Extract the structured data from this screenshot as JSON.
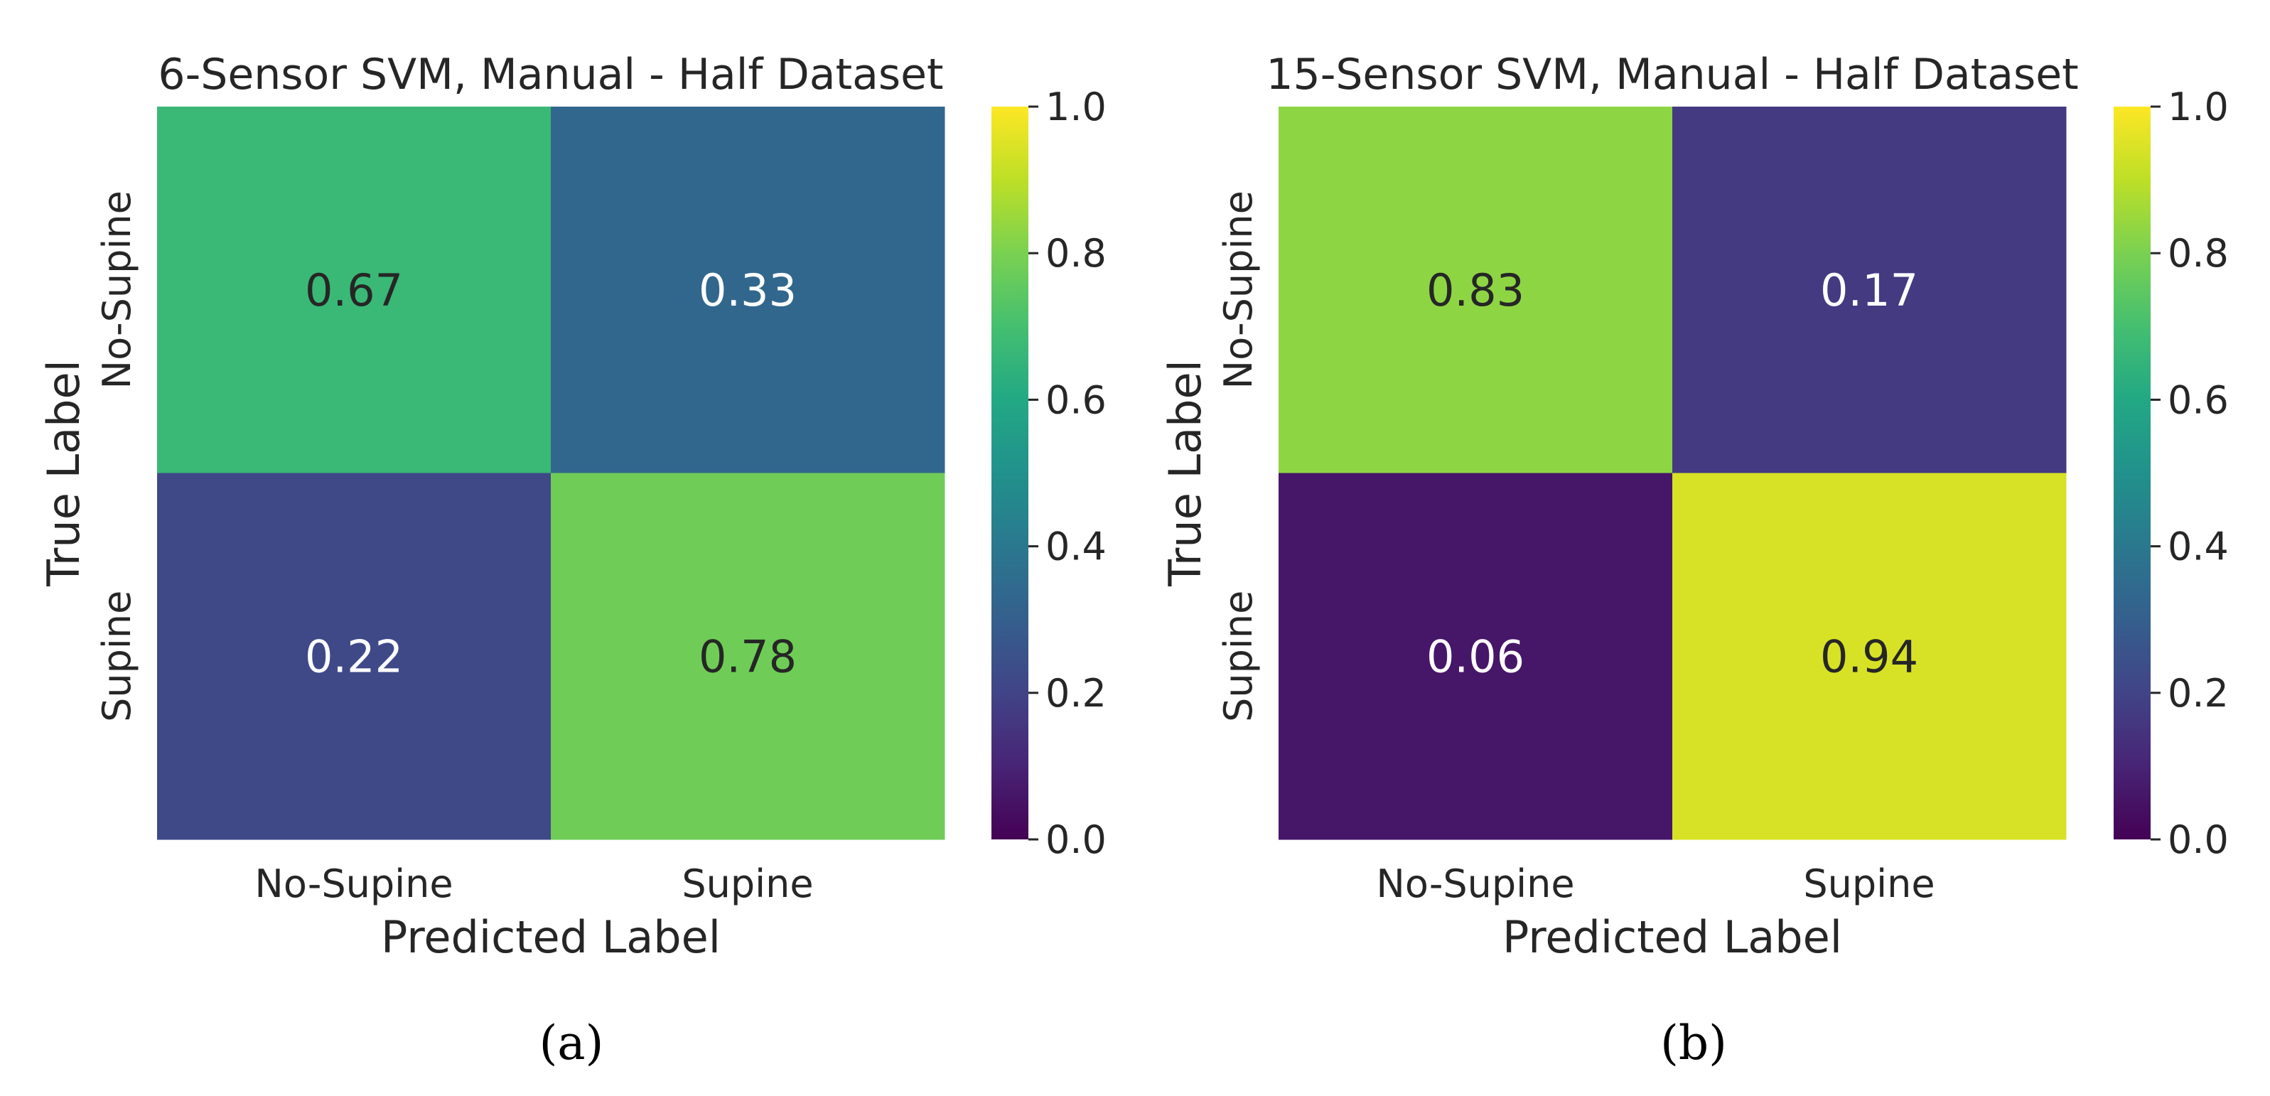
{
  "chart_data": [
    {
      "type": "heatmap",
      "title": "6-Sensor SVM, Manual - Half Dataset",
      "xlabel": "Predicted Label",
      "ylabel": "True Label",
      "x_categories": [
        "No-Supine",
        "Supine"
      ],
      "y_categories": [
        "No-Supine",
        "Supine"
      ],
      "values": [
        [
          0.67,
          0.33
        ],
        [
          0.22,
          0.78
        ]
      ],
      "value_labels": [
        [
          "0.67",
          "0.33"
        ],
        [
          "0.22",
          "0.78"
        ]
      ],
      "colorbar": {
        "colormap": "viridis",
        "range": [
          0.0,
          1.0
        ],
        "ticks": [
          0.0,
          0.2,
          0.4,
          0.6,
          0.8,
          1.0
        ],
        "tick_labels": [
          "0.0",
          "0.2",
          "0.4",
          "0.6",
          "0.8",
          "1.0"
        ]
      },
      "panel_label": "(a)"
    },
    {
      "type": "heatmap",
      "title": "15-Sensor SVM, Manual - Half Dataset",
      "xlabel": "Predicted Label",
      "ylabel": "True Label",
      "x_categories": [
        "No-Supine",
        "Supine"
      ],
      "y_categories": [
        "No-Supine",
        "Supine"
      ],
      "values": [
        [
          0.83,
          0.17
        ],
        [
          0.06,
          0.94
        ]
      ],
      "value_labels": [
        [
          "0.83",
          "0.17"
        ],
        [
          "0.06",
          "0.94"
        ]
      ],
      "colorbar": {
        "colormap": "viridis",
        "range": [
          0.0,
          1.0
        ],
        "ticks": [
          0.0,
          0.2,
          0.4,
          0.6,
          0.8,
          1.0
        ],
        "tick_labels": [
          "0.0",
          "0.2",
          "0.4",
          "0.6",
          "0.8",
          "1.0"
        ]
      },
      "panel_label": "(b)"
    }
  ]
}
